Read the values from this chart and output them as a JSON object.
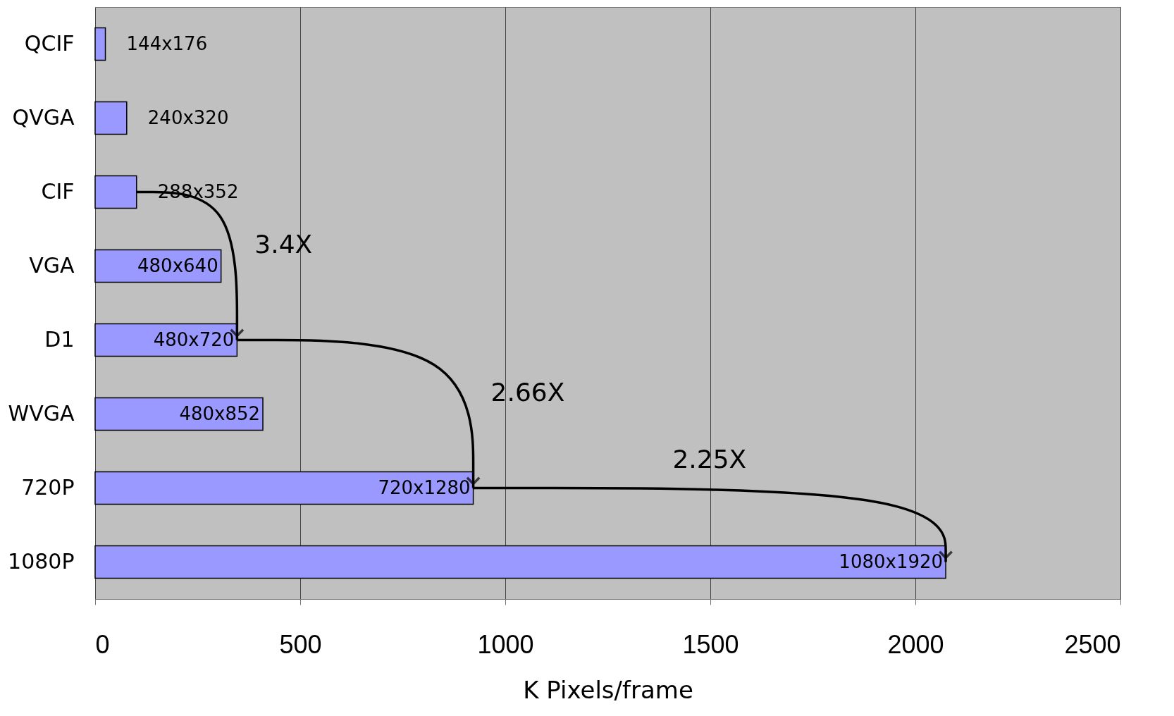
{
  "chart_data": {
    "type": "bar",
    "orientation": "horizontal",
    "xlabel": "K Pixels/frame",
    "categories": [
      "QCIF",
      "QVGA",
      "CIF",
      "VGA",
      "D1",
      "WVGA",
      "720P",
      "1080P"
    ],
    "values": [
      25,
      77,
      101,
      307,
      346,
      409,
      922,
      2074
    ],
    "color": "#9999ff",
    "xlim": [
      0,
      2500
    ],
    "xticks": [
      0,
      500,
      {
        "value": 1000,
        "label": "1000"
      },
      {
        "value": 1500,
        "label": "1500"
      },
      {
        "value": 2000,
        "label": "2000"
      },
      {
        "value": 2500,
        "label": "2500"
      }
    ],
    "grid": "x",
    "annotations": [
      {
        "text": "144x176",
        "x": 25,
        "y": "QCIF"
      },
      {
        "text": "240x320",
        "x": 77,
        "y": "QVGA"
      },
      {
        "text": "288x352",
        "x": 101,
        "y": "CIF"
      },
      {
        "text": "480x640",
        "x": 307,
        "y": "VGA"
      },
      {
        "text": "480x720",
        "x": 346,
        "y": "D1"
      },
      {
        "text": "480x852",
        "x": 409,
        "y": "WVGA"
      },
      {
        "text": "720x1280",
        "x": 922,
        "y": "720P"
      },
      {
        "text": "1080x1920",
        "x": 2074,
        "y": "1080P"
      },
      "3.4X",
      "2.66X",
      "2.25X"
    ]
  }
}
